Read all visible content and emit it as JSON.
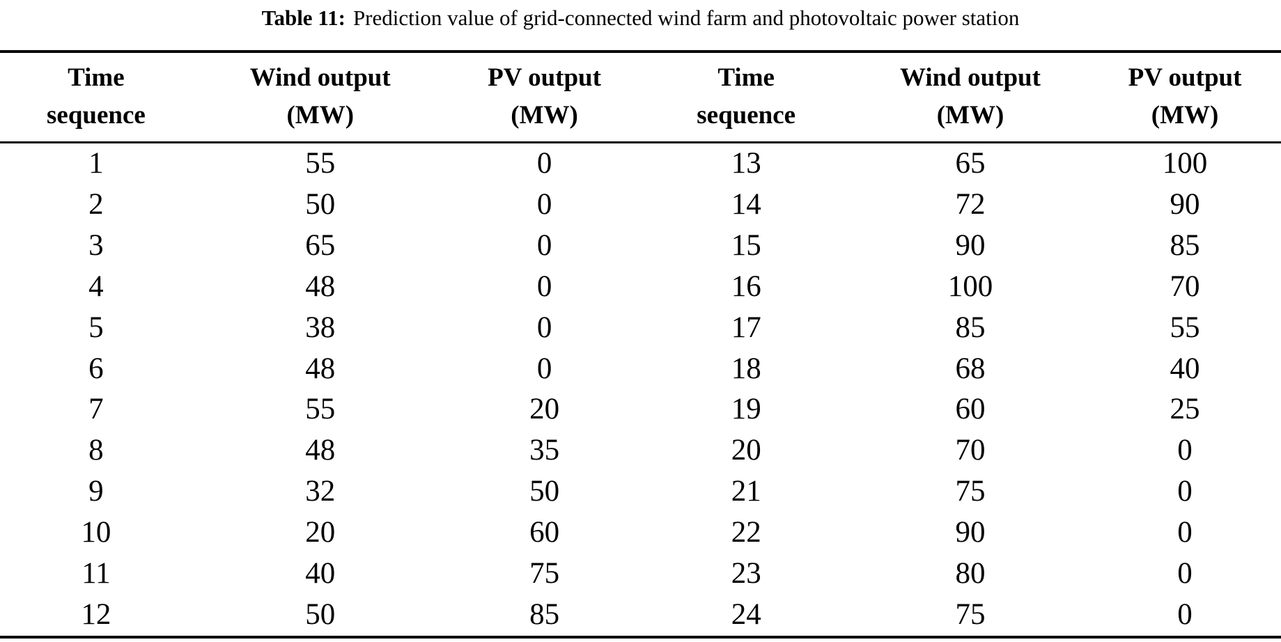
{
  "page": {
    "background": "#ffffff",
    "text_color": "#000000",
    "rule_color": "#000000"
  },
  "caption": {
    "label": "Table 11:",
    "text": "Prediction value of grid-connected wind farm and photovoltaic power station"
  },
  "table": {
    "headers": [
      {
        "line1": "Time",
        "line2": "sequence"
      },
      {
        "line1": "Wind output",
        "line2": "(MW)"
      },
      {
        "line1": "PV output",
        "line2": "(MW)"
      },
      {
        "line1": "Time",
        "line2": "sequence"
      },
      {
        "line1": "Wind output",
        "line2": "(MW)"
      },
      {
        "line1": "PV output",
        "line2": "(MW)"
      }
    ],
    "rows": [
      [
        "1",
        "55",
        "0",
        "13",
        "65",
        "100"
      ],
      [
        "2",
        "50",
        "0",
        "14",
        "72",
        "90"
      ],
      [
        "3",
        "65",
        "0",
        "15",
        "90",
        "85"
      ],
      [
        "4",
        "48",
        "0",
        "16",
        "100",
        "70"
      ],
      [
        "5",
        "38",
        "0",
        "17",
        "85",
        "55"
      ],
      [
        "6",
        "48",
        "0",
        "18",
        "68",
        "40"
      ],
      [
        "7",
        "55",
        "20",
        "19",
        "60",
        "25"
      ],
      [
        "8",
        "48",
        "35",
        "20",
        "70",
        "0"
      ],
      [
        "9",
        "32",
        "50",
        "21",
        "75",
        "0"
      ],
      [
        "10",
        "20",
        "60",
        "22",
        "90",
        "0"
      ],
      [
        "11",
        "40",
        "75",
        "23",
        "80",
        "0"
      ],
      [
        "12",
        "50",
        "85",
        "24",
        "75",
        "0"
      ]
    ]
  }
}
